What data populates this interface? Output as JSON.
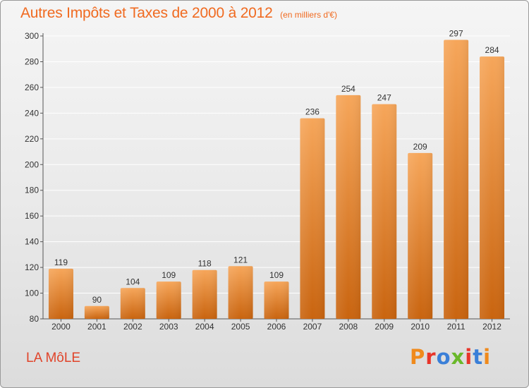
{
  "header": {
    "title": "Autres Impôts et Taxes de 2000 à 2012",
    "subtitle": "(en milliers d'€)"
  },
  "footer": {
    "place": "LA MôLE",
    "logo_text": "Proxiti",
    "logo_colors": [
      "#f08a1c",
      "#e8352a",
      "#3a7fd8",
      "#6ab82a",
      "#e8352a",
      "#3a7fd8",
      "#f08a1c"
    ]
  },
  "colors": {
    "title": "#f06a20",
    "bar_light": "#f6a65a",
    "bar_dark": "#c9640f",
    "grid": "#ffffff",
    "axis": "#555555"
  },
  "chart_data": {
    "type": "bar",
    "title": "Autres Impôts et Taxes de 2000 à 2012",
    "subtitle": "(en milliers d'€)",
    "categories": [
      "2000",
      "2001",
      "2002",
      "2003",
      "2004",
      "2005",
      "2006",
      "2007",
      "2008",
      "2009",
      "2010",
      "2011",
      "2012"
    ],
    "values": [
      119,
      90,
      104,
      109,
      118,
      121,
      109,
      236,
      254,
      247,
      209,
      297,
      284
    ],
    "ylim": [
      80,
      300
    ],
    "yticks": [
      80,
      100,
      120,
      140,
      160,
      180,
      200,
      220,
      240,
      260,
      280,
      300
    ],
    "grid": true,
    "data_labels": true
  }
}
